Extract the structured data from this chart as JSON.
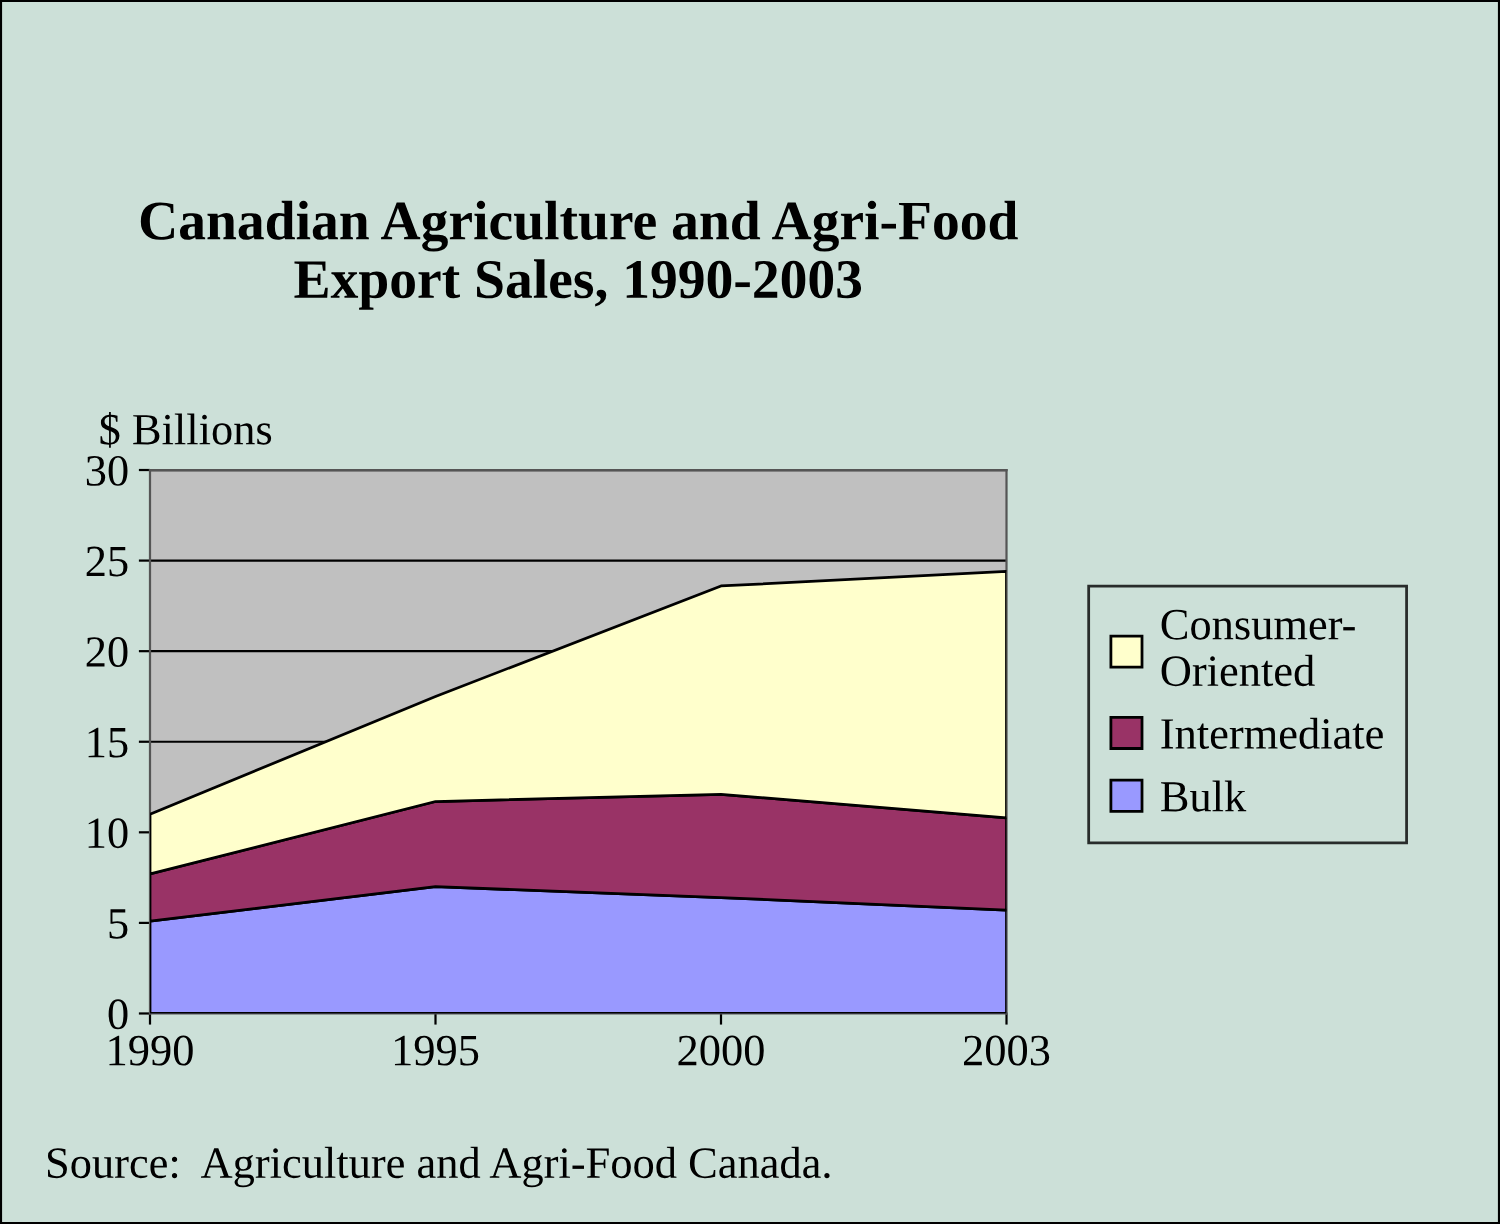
{
  "chart_data": {
    "type": "area",
    "title": "Canadian Agriculture and Agri-Food\nExport Sales, 1990-2003",
    "ylabel": "$ Billions",
    "categories": [
      "1990",
      "1995",
      "2000",
      "2003"
    ],
    "stacked": true,
    "series": [
      {
        "name": "Bulk",
        "color": "#9999ff",
        "values": [
          5.1,
          7.0,
          6.4,
          5.7
        ]
      },
      {
        "name": "Intermediate",
        "color": "#993366",
        "values": [
          2.6,
          4.7,
          5.7,
          5.1
        ]
      },
      {
        "name": "Consumer-\nOriented",
        "color": "#ffffcc",
        "values": [
          3.3,
          5.8,
          11.5,
          13.6
        ]
      }
    ],
    "ylim": [
      0,
      30
    ],
    "yticks": [
      0,
      5,
      10,
      15,
      20,
      25,
      30
    ],
    "grid": "y",
    "legend": "right",
    "annotations": [
      "Source:  Agriculture and Agri-Food Canada."
    ]
  }
}
